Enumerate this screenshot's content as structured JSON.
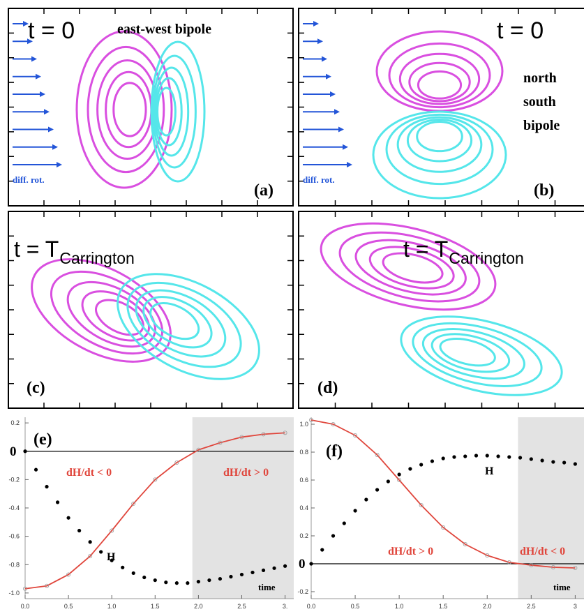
{
  "chart_data": [
    {
      "type": "contour",
      "title": "t = 0",
      "annotation": "east-west bipole",
      "arrow_label": "diff. rot.",
      "panel_label": "(a)"
    },
    {
      "type": "contour",
      "title": "t = 0",
      "annotation": [
        "north",
        "south",
        "bipole"
      ],
      "arrow_label": "diff. rot.",
      "panel_label": "(b)"
    },
    {
      "type": "contour",
      "title": "t = T",
      "title_subscript": "Carrington",
      "panel_label": "(c)"
    },
    {
      "type": "contour",
      "title": "t = T",
      "title_subscript": "Carrington",
      "panel_label": "(d)"
    },
    {
      "type": "line",
      "panel_label": "(e)",
      "annotations": [
        "dH/dt < 0",
        "dH/dt > 0",
        "time"
      ],
      "xlim": [
        0,
        3.1
      ],
      "ylim": [
        -1.04,
        0.24
      ],
      "xticks": [
        {
          "value": 0,
          "label": "0.0"
        },
        0.5,
        {
          "value": 1,
          "label": "1.0"
        },
        1.5,
        {
          "value": 2,
          "label": "2.0"
        },
        2.5,
        {
          "value": 3,
          "label": "3."
        }
      ],
      "yticks": [
        0.2,
        0,
        -0.2,
        -0.4,
        -0.6,
        -0.8,
        {
          "value": -1,
          "label": "-1.0"
        }
      ],
      "shaded_x": [
        1.93,
        3.1
      ],
      "series": [
        {
          "color": "#e0463c",
          "x": [
            0,
            0.25,
            0.5,
            0.75,
            1,
            1.25,
            1.5,
            1.75,
            2,
            2.25,
            2.5,
            2.75,
            3
          ],
          "values": [
            -0.97,
            -0.95,
            -0.87,
            -0.74,
            -0.56,
            -0.37,
            -0.2,
            -0.08,
            0.01,
            0.06,
            0.1,
            0.12,
            0.13
          ]
        },
        {
          "name": "H",
          "color": "#000000",
          "x": [
            0,
            0.125,
            0.25,
            0.375,
            0.5,
            0.625,
            0.75,
            0.875,
            1,
            1.125,
            1.25,
            1.375,
            1.5,
            1.625,
            1.75,
            1.875,
            2,
            2.125,
            2.25,
            2.375,
            2.5,
            2.625,
            2.75,
            2.875,
            3
          ],
          "values": [
            0,
            -0.13,
            -0.25,
            -0.36,
            -0.47,
            -0.56,
            -0.64,
            -0.71,
            -0.77,
            -0.82,
            -0.86,
            -0.89,
            -0.91,
            -0.925,
            -0.93,
            -0.93,
            -0.92,
            -0.91,
            -0.9,
            -0.885,
            -0.87,
            -0.855,
            -0.84,
            -0.825,
            -0.81
          ]
        }
      ]
    },
    {
      "type": "line",
      "panel_label": "(f)",
      "annotations": [
        "dH/dt > 0",
        "dH/dt < 0",
        "time"
      ],
      "xlim": [
        0,
        3.1
      ],
      "ylim": [
        -0.25,
        1.05
      ],
      "xticks": [
        {
          "value": 0,
          "label": "0.0"
        },
        0.5,
        {
          "value": 1,
          "label": "1.0"
        },
        1.5,
        {
          "value": 2,
          "label": "2.0"
        },
        2.5,
        3
      ],
      "yticks": [
        {
          "value": 1,
          "label": "1.0"
        },
        0.8,
        0.6,
        0.4,
        0.2,
        0,
        -0.2
      ],
      "shaded_x": [
        2.35,
        3.1
      ],
      "series": [
        {
          "color": "#e0463c",
          "x": [
            0,
            0.25,
            0.5,
            0.75,
            1,
            1.25,
            1.5,
            1.75,
            2,
            2.25,
            2.5,
            2.75,
            3
          ],
          "values": [
            1.03,
            1.0,
            0.92,
            0.78,
            0.6,
            0.42,
            0.26,
            0.14,
            0.06,
            0.01,
            -0.01,
            -0.025,
            -0.03
          ]
        },
        {
          "name": "H",
          "color": "#000000",
          "x": [
            0,
            0.125,
            0.25,
            0.375,
            0.5,
            0.625,
            0.75,
            0.875,
            1,
            1.125,
            1.25,
            1.375,
            1.5,
            1.625,
            1.75,
            1.875,
            2,
            2.125,
            2.25,
            2.375,
            2.5,
            2.625,
            2.75,
            2.875,
            3
          ],
          "values": [
            0,
            0.1,
            0.2,
            0.29,
            0.38,
            0.46,
            0.53,
            0.59,
            0.64,
            0.68,
            0.71,
            0.735,
            0.755,
            0.765,
            0.77,
            0.775,
            0.775,
            0.77,
            0.765,
            0.76,
            0.75,
            0.74,
            0.73,
            0.725,
            0.715
          ]
        }
      ]
    }
  ]
}
